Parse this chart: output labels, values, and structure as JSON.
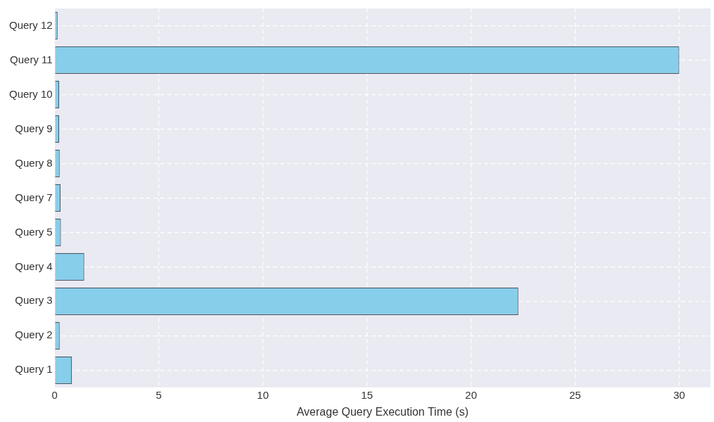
{
  "chart_data": {
    "type": "bar",
    "orientation": "horizontal",
    "xlabel": "Average Query Execution Time (s)",
    "categories": [
      "Query 12",
      "Query 11",
      "Query 10",
      "Query 9",
      "Query 8",
      "Query 7",
      "Query 5",
      "Query 4",
      "Query 3",
      "Query 2",
      "Query 1"
    ],
    "values": [
      0.14,
      30.0,
      0.22,
      0.22,
      0.24,
      0.28,
      0.3,
      1.42,
      22.27,
      0.24,
      0.83
    ],
    "color": "#87ceeb",
    "xlim": [
      0,
      31.5
    ],
    "xticks": [
      0,
      5,
      10,
      15,
      20,
      25,
      30
    ],
    "grid": true,
    "legend": false
  }
}
